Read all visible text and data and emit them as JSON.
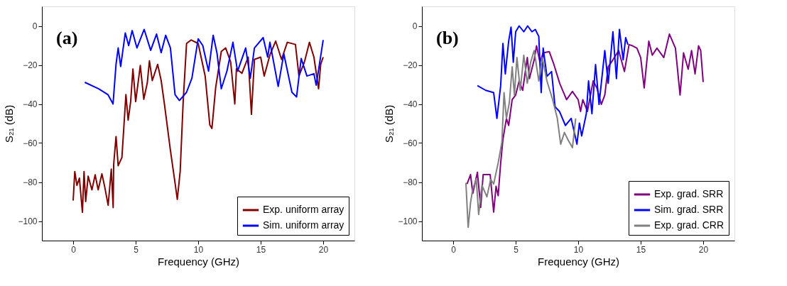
{
  "chart_data": [
    {
      "type": "line",
      "xlabel": "Frequency (GHz)",
      "ylabel": "S₂₁ (dB)",
      "annotations": [
        "(a)"
      ],
      "xlim": [
        -2.5,
        22.5
      ],
      "ylim": [
        -110,
        10
      ],
      "xticks": [
        0,
        5,
        10,
        15,
        20
      ],
      "yticks": [
        -100,
        -80,
        -60,
        -40,
        -20,
        0
      ],
      "legend": "bottom right",
      "series": [
        {
          "name": "Exp. uniform array",
          "color": "#800000",
          "x": [
            0,
            0.13,
            0.3,
            0.5,
            0.74,
            0.87,
            1.0,
            1.2,
            1.5,
            1.76,
            2.0,
            2.3,
            2.5,
            2.8,
            3.05,
            3.2,
            3.24,
            3.43,
            3.6,
            3.9,
            4.22,
            4.4,
            4.6,
            4.78,
            5.0,
            5.37,
            5.65,
            5.93,
            6.1,
            6.33,
            6.76,
            7.04,
            7.3,
            7.78,
            8.15,
            8.33,
            8.56,
            8.8,
            9.07,
            9.44,
            10.0,
            10.56,
            10.93,
            11.1,
            11.4,
            11.85,
            12.2,
            12.6,
            12.93,
            13.06,
            13.5,
            14.0,
            14.26,
            14.5,
            15.0,
            15.28,
            15.74,
            16.2,
            16.67,
            17.13,
            17.78,
            18.06,
            18.5,
            18.9,
            19.26,
            19.63,
            19.8,
            20.0
          ],
          "values": [
            -89.5,
            -74.6,
            -81.7,
            -78,
            -95.5,
            -74.6,
            -90,
            -77,
            -84,
            -76.3,
            -84,
            -75.8,
            -81.7,
            -91.9,
            -73.4,
            -93.1,
            -71,
            -56.7,
            -71.6,
            -67.4,
            -35.2,
            -48.3,
            -38.7,
            -22.1,
            -38.8,
            -20.3,
            -37.6,
            -29.2,
            -17.9,
            -28,
            -19.7,
            -28,
            -40,
            -63.8,
            -80.5,
            -88.9,
            -74.6,
            -38.8,
            -9,
            -7.2,
            -9,
            -25.7,
            -50.7,
            -52.5,
            -31.6,
            -13.1,
            -11.3,
            -18.5,
            -40,
            -22,
            -24.3,
            -16,
            -45.3,
            -17.2,
            -16,
            -25.7,
            -14.9,
            -7.8,
            -17.2,
            -8.4,
            -9.5,
            -25.7,
            -18.5,
            -8.4,
            -16,
            -32.2,
            -19.7,
            -16
          ]
        },
        {
          "name": "Sim. uniform array",
          "color": "#0000ff",
          "x": [
            0.93,
            2.04,
            2.78,
            3.19,
            3.43,
            3.6,
            3.8,
            4.17,
            4.44,
            4.72,
            5.1,
            5.68,
            6.2,
            6.67,
            7.04,
            7.4,
            7.78,
            8.15,
            8.5,
            9.07,
            9.5,
            10.0,
            10.37,
            10.83,
            11.2,
            11.5,
            11.85,
            12.3,
            12.78,
            13.15,
            13.8,
            14.17,
            14.5,
            15.2,
            15.56,
            15.74,
            16.4,
            16.85,
            17.5,
            17.87,
            18.24,
            18.7,
            19.26,
            19.44,
            20.0
          ],
          "values": [
            -28.9,
            -32.2,
            -35.2,
            -40,
            -19.7,
            -11.3,
            -20.8,
            -3.6,
            -10.1,
            -2.4,
            -11.3,
            -1.8,
            -12.5,
            -4.2,
            -13.7,
            -4.8,
            -11.3,
            -35.2,
            -38.2,
            -34,
            -26.8,
            -6.6,
            -10.1,
            -23.2,
            -4.8,
            -13.7,
            -32.2,
            -23.2,
            -8.4,
            -23.2,
            -11.3,
            -26.8,
            -11.3,
            -6,
            -16,
            -8.4,
            -31,
            -14.3,
            -34,
            -36.4,
            -16.7,
            -25.7,
            -24.5,
            -30.4,
            -7.2
          ]
        }
      ]
    },
    {
      "type": "line",
      "xlabel": "Frequency (GHz)",
      "ylabel": "S₂₁ (dB)",
      "annotations": [
        "(b)"
      ],
      "xlim": [
        -2.5,
        22.5
      ],
      "ylim": [
        -110,
        10
      ],
      "xticks": [
        0,
        5,
        10,
        15,
        20
      ],
      "yticks": [
        -100,
        -80,
        -60,
        -40,
        -20,
        0
      ],
      "legend": "bottom right",
      "series": [
        {
          "name": "Exp. grad. SRR",
          "color": "#800080",
          "x": [
            1.11,
            1.39,
            1.57,
            1.94,
            2.2,
            2.4,
            2.96,
            3.24,
            3.43,
            3.6,
            3.8,
            3.98,
            4.26,
            4.44,
            4.72,
            5.0,
            5.28,
            5.56,
            5.93,
            6.1,
            6.48,
            6.67,
            6.94,
            7.2,
            7.69,
            8.06,
            8.52,
            9.07,
            9.54,
            10.0,
            10.19,
            10.37,
            10.74,
            11.2,
            11.5,
            11.85,
            12.13,
            12.4,
            12.78,
            13.24,
            13.7,
            14.07,
            14.35,
            14.7,
            15.0,
            15.28,
            15.65,
            15.93,
            16.3,
            16.85,
            17.3,
            17.78,
            18.15,
            18.43,
            18.8,
            19.07,
            19.35,
            19.63,
            19.8,
            20.0
          ],
          "values": [
            -81,
            -76.2,
            -85.8,
            -75,
            -93,
            -76.2,
            -76.2,
            -95.4,
            -82.2,
            -87,
            -70.2,
            -58.2,
            -47.4,
            -51,
            -37.8,
            -35.4,
            -28.2,
            -33,
            -16.2,
            -27,
            -17.4,
            -10.2,
            -18.6,
            -13.8,
            -13.2,
            -19.8,
            -29.4,
            -37.8,
            -33.6,
            -37.8,
            -43.8,
            -37.8,
            -43.8,
            -28.2,
            -31.8,
            -40.2,
            -35.4,
            -21,
            -17.4,
            -12.6,
            -23.4,
            -9.6,
            -10.2,
            -11.4,
            -16.2,
            -31.8,
            -7.8,
            -15,
            -11.4,
            -16.2,
            -4.2,
            -11.4,
            -35.4,
            -13.8,
            -22.2,
            -12.6,
            -24.6,
            -10.2,
            -12.6,
            -28.8
          ]
        },
        {
          "name": "Sim. grad. SRR",
          "color": "#0000ff",
          "x": [
            1.94,
            2.6,
            3.24,
            3.5,
            3.8,
            3.98,
            4.17,
            4.44,
            4.63,
            4.81,
            5.0,
            5.28,
            5.65,
            5.96,
            6.3,
            6.57,
            6.85,
            7.04,
            7.2,
            7.5,
            7.87,
            8.15,
            8.5,
            8.98,
            9.44,
            9.9,
            10.1,
            10.28,
            10.65,
            10.83,
            11.1,
            11.39,
            11.67,
            12.13,
            12.4,
            12.78,
            13.06,
            13.3,
            13.6,
            13.8,
            13.98
          ],
          "values": [
            -30.6,
            -33,
            -34.2,
            -47.4,
            -30.6,
            -9,
            -24.6,
            -7.8,
            -0.6,
            -18.6,
            -3,
            0,
            -3,
            0,
            -3,
            -1.8,
            -5.4,
            -34.2,
            -11.4,
            -25.8,
            -23.4,
            -41.4,
            -43.8,
            -51,
            -47.4,
            -60.6,
            -49.8,
            -56.4,
            -45,
            -28.2,
            -45,
            -19.8,
            -40.2,
            -12.6,
            -29.4,
            -3,
            -27,
            -1.8,
            -17.4,
            -6,
            -9.6
          ]
        },
        {
          "name": "Exp. grad. CRR",
          "color": "#808080",
          "x": [
            1.02,
            1.2,
            1.39,
            1.57,
            1.85,
            2.04,
            2.3,
            2.7,
            3.0,
            3.24,
            3.6,
            3.9,
            4.07,
            4.26,
            4.5,
            4.72,
            4.9,
            5.1,
            5.37,
            5.65,
            5.93,
            6.2,
            6.48,
            6.85,
            7.13,
            7.5,
            7.96,
            8.33,
            8.6,
            8.9,
            9.17,
            9.54,
            9.8
          ],
          "values": [
            -80.4,
            -103.2,
            -90.6,
            -83.4,
            -78.6,
            -96.6,
            -81.6,
            -87.6,
            -78.6,
            -81,
            -70.2,
            -59.4,
            -34.2,
            -47.4,
            -39,
            -21,
            -35.4,
            -16.2,
            -33,
            -15,
            -29.4,
            -18.6,
            -12.6,
            -28.2,
            -16.2,
            -28.2,
            -37.8,
            -47.4,
            -60.6,
            -54.6,
            -58.2,
            -62.4,
            -47.4
          ]
        }
      ]
    }
  ]
}
